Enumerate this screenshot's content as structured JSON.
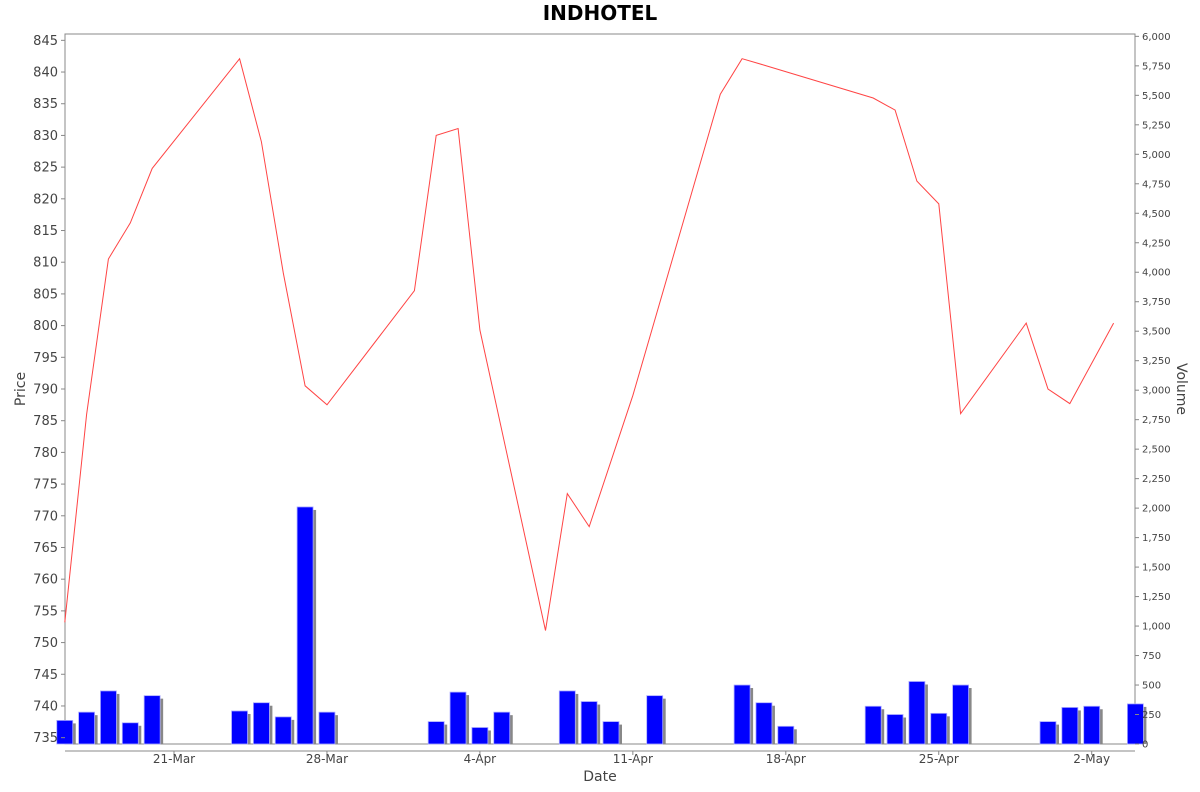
{
  "chart_data": {
    "type": "line+bar",
    "title": "INDHOTEL",
    "xlabel": "Date",
    "ylabel_left": "Price",
    "ylabel_right": "Volume",
    "x_ticks": [
      "21-Mar",
      "28-Mar",
      "4-Apr",
      "11-Apr",
      "18-Apr",
      "25-Apr",
      "2-May"
    ],
    "y_left_ticks": [
      735,
      740,
      745,
      750,
      755,
      760,
      765,
      770,
      775,
      780,
      785,
      790,
      795,
      800,
      805,
      810,
      815,
      820,
      825,
      830,
      835,
      840,
      845
    ],
    "y_left_range": [
      734,
      846
    ],
    "y_right_ticks": [
      "0",
      "250",
      "500",
      "750",
      "1,000",
      "1,250",
      "1,500",
      "1,750",
      "2,000",
      "2,250",
      "2,500",
      "2,750",
      "3,000",
      "3,250",
      "3,500",
      "3,750",
      "4,000",
      "4,250",
      "4,500",
      "4,750",
      "5,000",
      "5,250",
      "5,500",
      "5,750",
      "6,000"
    ],
    "y_right_range": [
      0,
      6020
    ],
    "grid": false,
    "colors": {
      "price_line": "#ff4444",
      "volume_bar": "#0000ff",
      "bar_shadow": "#888888"
    },
    "series": [
      {
        "name": "Price",
        "x": [
          "2024-03-16",
          "2024-03-17",
          "2024-03-18",
          "2024-03-19",
          "2024-03-20",
          "2024-03-24",
          "2024-03-25",
          "2024-03-26",
          "2024-03-27",
          "2024-03-28",
          "2024-04-01",
          "2024-04-02",
          "2024-04-03",
          "2024-04-04",
          "2024-04-07",
          "2024-04-08",
          "2024-04-09",
          "2024-04-11",
          "2024-04-15",
          "2024-04-16",
          "2024-04-17",
          "2024-04-22",
          "2024-04-23",
          "2024-04-24",
          "2024-04-25",
          "2024-04-26",
          "2024-04-29",
          "2024-04-30",
          "2024-05-01",
          "2024-05-03"
        ],
        "values": [
          753.2,
          786,
          810.5,
          816.2,
          824.8,
          842.1,
          829,
          808.3,
          790.5,
          787.5,
          805.5,
          830,
          831.1,
          799.3,
          751.9,
          773.5,
          768.3,
          789,
          836.5,
          842.1,
          841.1,
          835.9,
          834,
          822.8,
          819.2,
          786.1,
          800.4,
          790,
          787.7,
          800.4
        ]
      },
      {
        "name": "Volume",
        "x": [
          "2024-03-16",
          "2024-03-17",
          "2024-03-18",
          "2024-03-19",
          "2024-03-20",
          "2024-03-24",
          "2024-03-25",
          "2024-03-26",
          "2024-03-27",
          "2024-03-28",
          "2024-04-02",
          "2024-04-03",
          "2024-04-04",
          "2024-04-05",
          "2024-04-08",
          "2024-04-09",
          "2024-04-10",
          "2024-04-12",
          "2024-04-16",
          "2024-04-17",
          "2024-04-18",
          "2024-04-22",
          "2024-04-23",
          "2024-04-24",
          "2024-04-25",
          "2024-04-26",
          "2024-04-30",
          "2024-05-01",
          "2024-05-02",
          "2024-05-04"
        ],
        "values": [
          200,
          270,
          450,
          180,
          410,
          280,
          350,
          230,
          2010,
          270,
          190,
          440,
          140,
          270,
          450,
          360,
          190,
          410,
          500,
          350,
          150,
          320,
          250,
          530,
          260,
          500,
          190,
          310,
          320,
          340
        ]
      }
    ]
  }
}
